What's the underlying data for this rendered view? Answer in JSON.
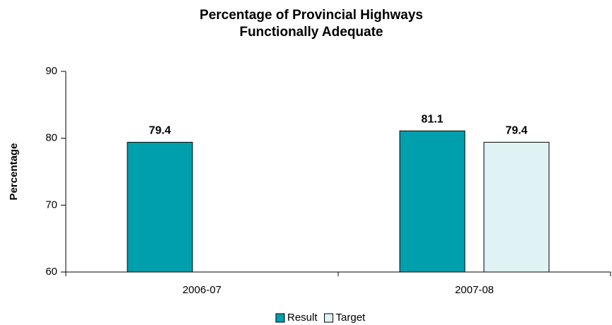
{
  "chart_data": {
    "type": "bar",
    "title": [
      "Percentage of Provincial Highways",
      "Functionally Adequate"
    ],
    "y_label": "Percentage",
    "categories": [
      "2006-07",
      "2007-08"
    ],
    "series": [
      {
        "name": "Result",
        "color": "#009fae",
        "values": [
          79.4,
          81.1
        ]
      },
      {
        "name": "Target",
        "color": "#dff2f4",
        "values": [
          null,
          79.4
        ]
      }
    ],
    "ylim": [
      60,
      90
    ],
    "yticks": [
      60,
      70,
      80,
      90
    ],
    "grid": false,
    "legend": "bottom"
  }
}
